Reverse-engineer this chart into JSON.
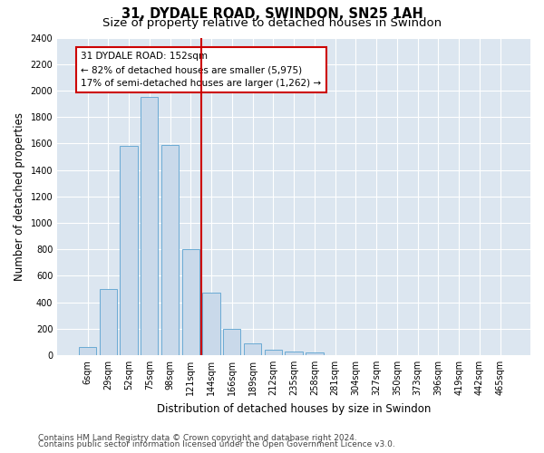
{
  "title": "31, DYDALE ROAD, SWINDON, SN25 1AH",
  "subtitle": "Size of property relative to detached houses in Swindon",
  "xlabel": "Distribution of detached houses by size in Swindon",
  "ylabel": "Number of detached properties",
  "footnote1": "Contains HM Land Registry data © Crown copyright and database right 2024.",
  "footnote2": "Contains public sector information licensed under the Open Government Licence v3.0.",
  "bar_labels": [
    "6sqm",
    "29sqm",
    "52sqm",
    "75sqm",
    "98sqm",
    "121sqm",
    "144sqm",
    "166sqm",
    "189sqm",
    "212sqm",
    "235sqm",
    "258sqm",
    "281sqm",
    "304sqm",
    "327sqm",
    "350sqm",
    "373sqm",
    "396sqm",
    "419sqm",
    "442sqm",
    "465sqm"
  ],
  "bar_values": [
    60,
    500,
    1580,
    1950,
    1590,
    800,
    470,
    195,
    90,
    40,
    30,
    20,
    0,
    0,
    0,
    0,
    0,
    0,
    0,
    0,
    0
  ],
  "bar_color": "#c9d9ea",
  "bar_edgecolor": "#6aaad4",
  "vline_x_index": 6,
  "vline_color": "#cc0000",
  "annotation_title": "31 DYDALE ROAD: 152sqm",
  "annotation_line1": "← 82% of detached houses are smaller (5,975)",
  "annotation_line2": "17% of semi-detached houses are larger (1,262) →",
  "annotation_box_edgecolor": "#cc0000",
  "ylim": [
    0,
    2400
  ],
  "yticks": [
    0,
    200,
    400,
    600,
    800,
    1000,
    1200,
    1400,
    1600,
    1800,
    2000,
    2200,
    2400
  ],
  "plot_bg_color": "#dce6f0",
  "fig_bg_color": "#ffffff",
  "grid_color": "#ffffff",
  "title_fontsize": 10.5,
  "subtitle_fontsize": 9.5,
  "axis_label_fontsize": 8.5,
  "tick_fontsize": 7,
  "annotation_fontsize": 7.5,
  "footnote_fontsize": 6.5
}
